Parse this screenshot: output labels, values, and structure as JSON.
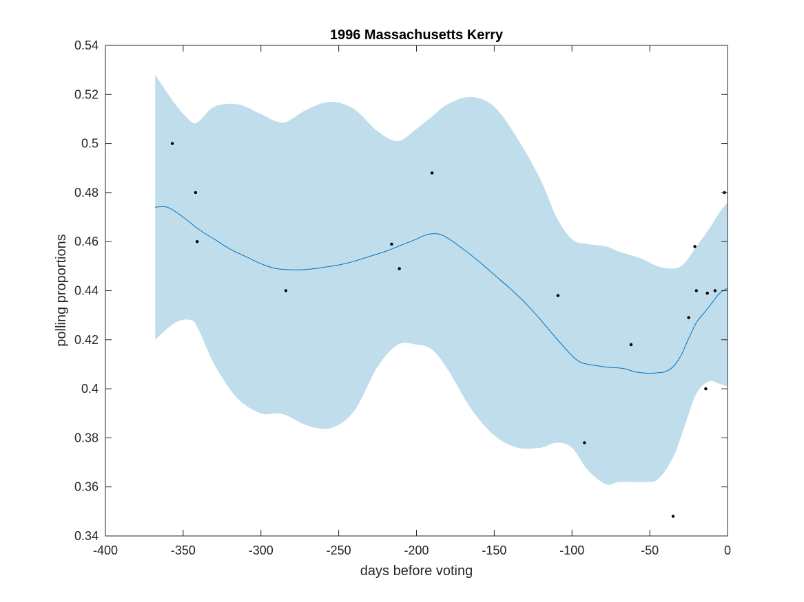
{
  "chart_data": {
    "type": "line",
    "title": "1996 Massachusetts Kerry",
    "xlabel": "days before voting",
    "ylabel": "polling proportions",
    "xlim": [
      -400,
      0
    ],
    "ylim": [
      0.34,
      0.54
    ],
    "xticks": [
      -400,
      -350,
      -300,
      -250,
      -200,
      -150,
      -100,
      -50,
      0
    ],
    "xtick_labels": [
      "-400",
      "-350",
      "-300",
      "-250",
      "-200",
      "-150",
      "-100",
      "-50",
      "0"
    ],
    "yticks": [
      0.34,
      0.36,
      0.38,
      0.4,
      0.42,
      0.44,
      0.46,
      0.48,
      0.5,
      0.52,
      0.54
    ],
    "ytick_labels": [
      "0.34",
      "0.36",
      "0.38",
      "0.4",
      "0.42",
      "0.44",
      "0.46",
      "0.48",
      "0.5",
      "0.52",
      "0.54"
    ],
    "grid": false,
    "colors": {
      "band": "#c0ddec",
      "mean": "#0072bd",
      "points": "#000000",
      "axes": "#262626"
    },
    "band": {
      "x": [
        -368,
        -355,
        -345,
        -340,
        -330,
        -315,
        -300,
        -290,
        -283,
        -270,
        -255,
        -240,
        -225,
        -212,
        -200,
        -190,
        -180,
        -165,
        -150,
        -135,
        -120,
        -110,
        -100,
        -90,
        -78,
        -70,
        -55,
        -45,
        -35,
        -28,
        -20,
        -12,
        -5,
        0
      ],
      "upper": [
        0.528,
        0.516,
        0.509,
        0.509,
        0.515,
        0.516,
        0.512,
        0.509,
        0.509,
        0.514,
        0.517,
        0.514,
        0.505,
        0.501,
        0.506,
        0.511,
        0.516,
        0.519,
        0.515,
        0.502,
        0.485,
        0.47,
        0.461,
        0.459,
        0.458,
        0.456,
        0.453,
        0.45,
        0.449,
        0.451,
        0.458,
        0.465,
        0.472,
        0.476
      ],
      "lower": [
        0.42,
        0.427,
        0.428,
        0.424,
        0.41,
        0.396,
        0.39,
        0.39,
        0.389,
        0.385,
        0.384,
        0.391,
        0.409,
        0.418,
        0.418,
        0.416,
        0.408,
        0.392,
        0.381,
        0.376,
        0.376,
        0.378,
        0.376,
        0.367,
        0.361,
        0.362,
        0.362,
        0.363,
        0.372,
        0.384,
        0.398,
        0.403,
        0.402,
        0.401
      ]
    },
    "mean": {
      "x": [
        -368,
        -360,
        -350,
        -340,
        -330,
        -320,
        -310,
        -300,
        -290,
        -280,
        -270,
        -260,
        -250,
        -240,
        -230,
        -220,
        -210,
        -200,
        -195,
        -190,
        -185,
        -180,
        -170,
        -160,
        -150,
        -140,
        -130,
        -120,
        -110,
        -100,
        -95,
        -90,
        -85,
        -80,
        -75,
        -70,
        -65,
        -60,
        -55,
        -50,
        -45,
        -40,
        -35,
        -30,
        -25,
        -20,
        -15,
        -10,
        -5,
        0
      ],
      "y": [
        0.474,
        0.474,
        0.47,
        0.465,
        0.461,
        0.457,
        0.454,
        0.451,
        0.449,
        0.4485,
        0.4487,
        0.4495,
        0.4505,
        0.452,
        0.454,
        0.456,
        0.4585,
        0.461,
        0.4625,
        0.4632,
        0.463,
        0.4615,
        0.457,
        0.452,
        0.4465,
        0.441,
        0.435,
        0.428,
        0.4205,
        0.4135,
        0.411,
        0.41,
        0.4095,
        0.409,
        0.4087,
        0.4085,
        0.408,
        0.407,
        0.4065,
        0.4063,
        0.4065,
        0.407,
        0.409,
        0.4135,
        0.4205,
        0.427,
        0.431,
        0.435,
        0.439,
        0.441
      ]
    },
    "points": {
      "x": [
        -357,
        -342,
        -341,
        -284,
        -216,
        -211,
        -190,
        -109,
        -92,
        -62,
        -35,
        -25,
        -21,
        -20,
        -14,
        -13,
        -8,
        -2
      ],
      "y": [
        0.5,
        0.48,
        0.46,
        0.44,
        0.459,
        0.449,
        0.488,
        0.438,
        0.378,
        0.418,
        0.348,
        0.429,
        0.458,
        0.44,
        0.4,
        0.439,
        0.44,
        0.48
      ]
    }
  }
}
